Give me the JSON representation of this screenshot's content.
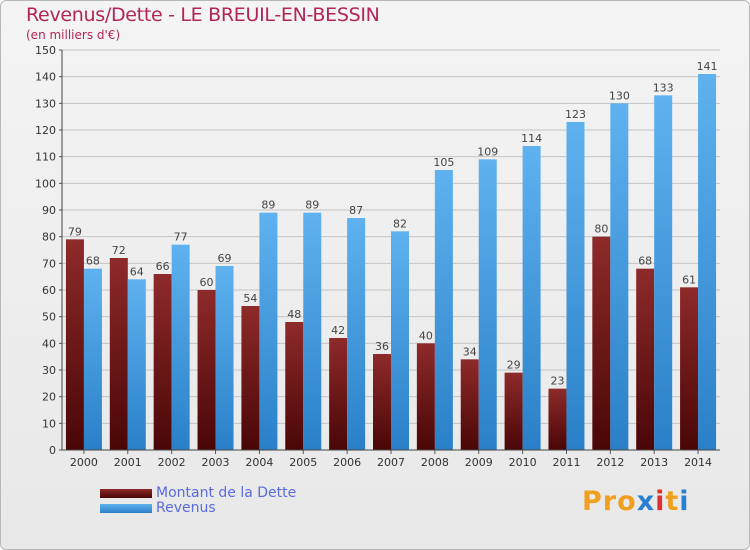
{
  "header": {
    "title": "Revenus/Dette - LE BREUIL-EN-BESSIN",
    "subtitle": "(en milliers d'€)"
  },
  "legend": {
    "dette_label": "Montant de la Dette",
    "revenus_label": "Revenus"
  },
  "logo": {
    "text": "Proxiti",
    "colors": [
      "#f0a020",
      "#f0a020",
      "#f0a020",
      "#2a7fd0",
      "#e03030",
      "#f0a020",
      "#2a7fd0"
    ]
  },
  "colors": {
    "dette": "#7a1a1a",
    "revenus": "#4aa3e6",
    "title": "#b3255a",
    "legend_text": "#5a6be0"
  },
  "chart_data": {
    "type": "bar",
    "categories": [
      "2000",
      "2001",
      "2002",
      "2003",
      "2004",
      "2005",
      "2006",
      "2007",
      "2008",
      "2009",
      "2010",
      "2011",
      "2012",
      "2013",
      "2014"
    ],
    "series": [
      {
        "name": "Montant de la Dette",
        "values": [
          79,
          72,
          66,
          60,
          54,
          48,
          42,
          36,
          40,
          34,
          29,
          23,
          80,
          68,
          61
        ]
      },
      {
        "name": "Revenus",
        "values": [
          68,
          64,
          77,
          69,
          89,
          89,
          87,
          82,
          105,
          109,
          114,
          123,
          130,
          133,
          141
        ]
      }
    ],
    "ylim": [
      0,
      150
    ],
    "yticks": [
      0,
      10,
      20,
      30,
      40,
      50,
      60,
      70,
      80,
      90,
      100,
      110,
      120,
      130,
      140,
      150
    ],
    "grid": true,
    "legend_position": "bottom-left"
  }
}
